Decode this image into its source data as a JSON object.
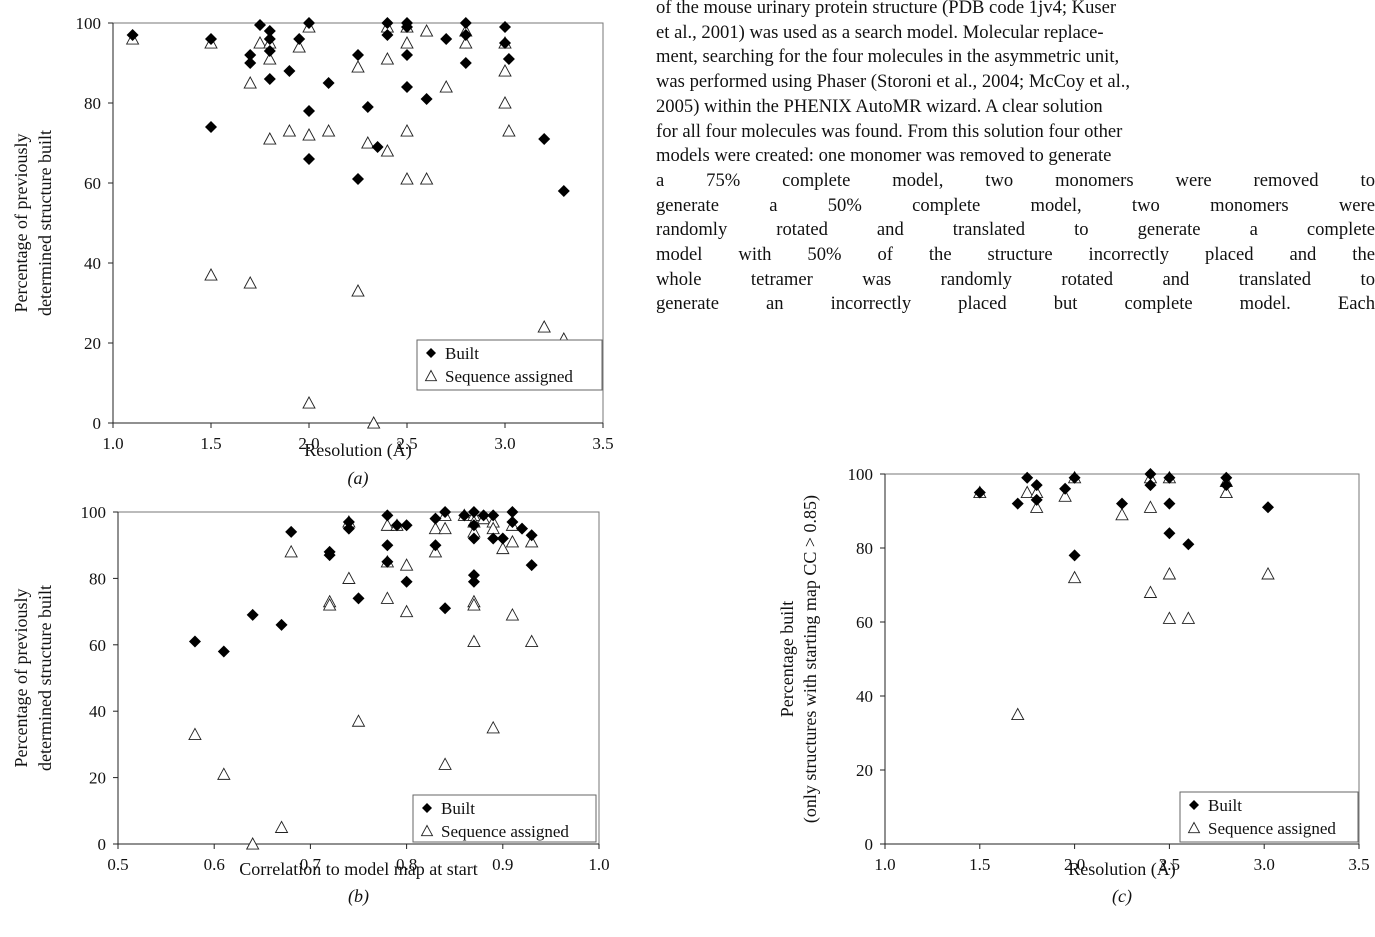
{
  "body_text": {
    "lines": [
      "of the mouse urinary protein structure (PDB code 1jv4; Kuser",
      "et al., 2001) was used as a search model. Molecular replace-",
      "ment, searching for the four molecules in the asymmetric unit,",
      "was performed using Phaser (Storoni et al., 2004; McCoy et al.,",
      "2005) within the PHENIX AutoMR wizard. A clear solution",
      "for all four molecules was found. From this solution four other",
      "models were created: one monomer was removed to generate",
      "a 75% complete model, two monomers were removed to",
      "generate a 50% complete model, two monomers were",
      "randomly rotated and translated to generate a complete",
      "model with 50% of the structure incorrectly placed and the",
      "whole tetramer was randomly rotated and translated to",
      "generate an incorrectly placed but complete model. Each"
    ]
  },
  "colors": {
    "built_marker": "#000000",
    "sequence_marker": "#ffffff",
    "frame": "#777777"
  },
  "chart_data": [
    {
      "panel": "(a)",
      "type": "scatter",
      "xlabel": "Resolution (Å)",
      "ylabel_lines": [
        "Percentage of previously",
        "determined structure built"
      ],
      "xlim": [
        1.0,
        3.5
      ],
      "ylim": [
        0,
        100
      ],
      "xticks": [
        "1.0",
        "1.5",
        "2.0",
        "2.5",
        "3.0",
        "3.5"
      ],
      "yticks": [
        "0",
        "20",
        "40",
        "60",
        "80",
        "100"
      ],
      "legend_position": "bottom-right",
      "series": [
        {
          "name": "Built",
          "marker": "diamond",
          "points": [
            [
              1.1,
              97
            ],
            [
              1.5,
              96
            ],
            [
              1.5,
              74
            ],
            [
              1.7,
              92
            ],
            [
              1.7,
              90
            ],
            [
              1.75,
              99.5
            ],
            [
              1.8,
              98
            ],
            [
              1.8,
              96
            ],
            [
              1.8,
              93
            ],
            [
              1.8,
              86
            ],
            [
              1.9,
              88
            ],
            [
              1.95,
              96
            ],
            [
              2.0,
              100
            ],
            [
              2.0,
              78
            ],
            [
              2.0,
              66
            ],
            [
              2.1,
              85
            ],
            [
              2.25,
              92
            ],
            [
              2.25,
              61
            ],
            [
              2.3,
              79
            ],
            [
              2.35,
              69
            ],
            [
              2.4,
              100
            ],
            [
              2.4,
              97
            ],
            [
              2.5,
              100
            ],
            [
              2.5,
              99
            ],
            [
              2.5,
              92
            ],
            [
              2.5,
              84
            ],
            [
              2.6,
              81
            ],
            [
              2.7,
              96
            ],
            [
              2.8,
              100
            ],
            [
              2.8,
              97
            ],
            [
              2.8,
              90
            ],
            [
              3.0,
              99
            ],
            [
              3.0,
              95
            ],
            [
              3.02,
              91
            ],
            [
              3.2,
              71
            ],
            [
              3.3,
              58
            ]
          ]
        },
        {
          "name": "Sequence assigned",
          "marker": "triangle",
          "points": [
            [
              1.1,
              96
            ],
            [
              1.5,
              95
            ],
            [
              1.5,
              37
            ],
            [
              1.7,
              85
            ],
            [
              1.7,
              35
            ],
            [
              1.75,
              95
            ],
            [
              1.8,
              95
            ],
            [
              1.8,
              91
            ],
            [
              1.8,
              71
            ],
            [
              1.9,
              73
            ],
            [
              1.95,
              94
            ],
            [
              2.0,
              99
            ],
            [
              2.0,
              72
            ],
            [
              2.0,
              5
            ],
            [
              2.1,
              73
            ],
            [
              2.25,
              89
            ],
            [
              2.25,
              33
            ],
            [
              2.3,
              70
            ],
            [
              2.33,
              0
            ],
            [
              2.4,
              99
            ],
            [
              2.4,
              91
            ],
            [
              2.4,
              68
            ],
            [
              2.5,
              99
            ],
            [
              2.5,
              95
            ],
            [
              2.5,
              73
            ],
            [
              2.5,
              61
            ],
            [
              2.6,
              98
            ],
            [
              2.6,
              61
            ],
            [
              2.7,
              84
            ],
            [
              2.8,
              98
            ],
            [
              2.8,
              95
            ],
            [
              3.0,
              95
            ],
            [
              3.0,
              88
            ],
            [
              3.0,
              80
            ],
            [
              3.02,
              73
            ],
            [
              3.2,
              24
            ],
            [
              3.3,
              21
            ]
          ]
        }
      ]
    },
    {
      "panel": "(b)",
      "type": "scatter",
      "xlabel": "Correlation to model map at start",
      "ylabel_lines": [
        "Percentage of previously",
        "determined structure built"
      ],
      "xlim": [
        0.5,
        1.0
      ],
      "ylim": [
        0,
        100
      ],
      "xticks": [
        "0.5",
        "0.6",
        "0.7",
        "0.8",
        "0.9",
        "1.0"
      ],
      "yticks": [
        "0",
        "20",
        "40",
        "60",
        "80",
        "100"
      ],
      "legend_position": "bottom-right",
      "series": [
        {
          "name": "Built",
          "marker": "diamond",
          "points": [
            [
              0.58,
              61
            ],
            [
              0.61,
              58
            ],
            [
              0.64,
              69
            ],
            [
              0.67,
              66
            ],
            [
              0.68,
              94
            ],
            [
              0.72,
              88
            ],
            [
              0.72,
              87
            ],
            [
              0.74,
              97
            ],
            [
              0.74,
              95
            ],
            [
              0.75,
              74
            ],
            [
              0.78,
              99
            ],
            [
              0.78,
              90
            ],
            [
              0.78,
              85
            ],
            [
              0.79,
              96
            ],
            [
              0.8,
              96
            ],
            [
              0.8,
              79
            ],
            [
              0.83,
              98
            ],
            [
              0.83,
              90
            ],
            [
              0.84,
              100
            ],
            [
              0.84,
              71
            ],
            [
              0.86,
              99
            ],
            [
              0.87,
              100
            ],
            [
              0.87,
              96
            ],
            [
              0.87,
              92
            ],
            [
              0.87,
              81
            ],
            [
              0.87,
              79
            ],
            [
              0.88,
              99
            ],
            [
              0.89,
              99
            ],
            [
              0.89,
              92
            ],
            [
              0.9,
              92
            ],
            [
              0.91,
              100
            ],
            [
              0.91,
              97
            ],
            [
              0.92,
              95
            ],
            [
              0.93,
              93
            ],
            [
              0.93,
              84
            ]
          ]
        },
        {
          "name": "Sequence assigned",
          "marker": "triangle",
          "points": [
            [
              0.58,
              33
            ],
            [
              0.61,
              21
            ],
            [
              0.64,
              0
            ],
            [
              0.67,
              5
            ],
            [
              0.68,
              88
            ],
            [
              0.72,
              73
            ],
            [
              0.72,
              72
            ],
            [
              0.74,
              97
            ],
            [
              0.74,
              80
            ],
            [
              0.75,
              37
            ],
            [
              0.78,
              96
            ],
            [
              0.78,
              85
            ],
            [
              0.78,
              74
            ],
            [
              0.79,
              96
            ],
            [
              0.8,
              84
            ],
            [
              0.8,
              70
            ],
            [
              0.83,
              95
            ],
            [
              0.83,
              88
            ],
            [
              0.84,
              99
            ],
            [
              0.84,
              95
            ],
            [
              0.84,
              24
            ],
            [
              0.86,
              99
            ],
            [
              0.87,
              99
            ],
            [
              0.87,
              97
            ],
            [
              0.87,
              94
            ],
            [
              0.87,
              73
            ],
            [
              0.87,
              72
            ],
            [
              0.87,
              61
            ],
            [
              0.88,
              98
            ],
            [
              0.89,
              97
            ],
            [
              0.89,
              95
            ],
            [
              0.89,
              35
            ],
            [
              0.9,
              89
            ],
            [
              0.91,
              96
            ],
            [
              0.91,
              91
            ],
            [
              0.91,
              69
            ],
            [
              0.93,
              91
            ],
            [
              0.93,
              61
            ]
          ]
        }
      ]
    },
    {
      "panel": "(c)",
      "type": "scatter",
      "xlabel": "Resolution (Å)",
      "ylabel_lines": [
        "Percentage built",
        "(only structures with starting map CC > 0.85)"
      ],
      "xlim": [
        1.0,
        3.5
      ],
      "ylim": [
        0,
        100
      ],
      "xticks": [
        "1.0",
        "1.5",
        "2.0",
        "2.5",
        "3.0",
        "3.5"
      ],
      "yticks": [
        "0",
        "20",
        "40",
        "60",
        "80",
        "100"
      ],
      "legend_position": "bottom-right",
      "series": [
        {
          "name": "Built",
          "marker": "diamond",
          "points": [
            [
              1.5,
              95
            ],
            [
              1.7,
              92
            ],
            [
              1.75,
              99
            ],
            [
              1.8,
              97
            ],
            [
              1.8,
              93
            ],
            [
              1.95,
              96
            ],
            [
              2.0,
              99
            ],
            [
              2.0,
              78
            ],
            [
              2.25,
              92
            ],
            [
              2.4,
              100
            ],
            [
              2.4,
              97
            ],
            [
              2.5,
              99
            ],
            [
              2.5,
              92
            ],
            [
              2.5,
              84
            ],
            [
              2.6,
              81
            ],
            [
              2.8,
              99
            ],
            [
              2.8,
              97
            ],
            [
              3.02,
              91
            ]
          ]
        },
        {
          "name": "Sequence assigned",
          "marker": "triangle",
          "points": [
            [
              1.5,
              95
            ],
            [
              1.7,
              35
            ],
            [
              1.75,
              95
            ],
            [
              1.8,
              95
            ],
            [
              1.8,
              91
            ],
            [
              1.95,
              94
            ],
            [
              2.0,
              99
            ],
            [
              2.0,
              72
            ],
            [
              2.25,
              89
            ],
            [
              2.4,
              99
            ],
            [
              2.4,
              91
            ],
            [
              2.4,
              68
            ],
            [
              2.5,
              99
            ],
            [
              2.5,
              73
            ],
            [
              2.5,
              61
            ],
            [
              2.6,
              61
            ],
            [
              2.8,
              98
            ],
            [
              2.8,
              95
            ],
            [
              3.02,
              73
            ]
          ]
        }
      ]
    }
  ]
}
